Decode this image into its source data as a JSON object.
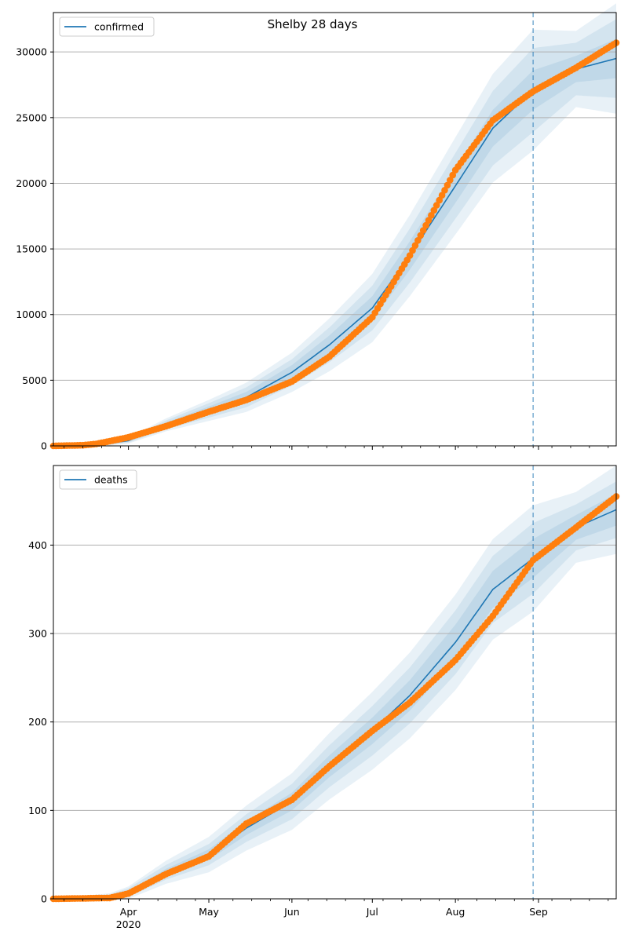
{
  "title": "Shelby 28 days",
  "x_axis": {
    "months": [
      {
        "date": "2020-04-01",
        "label": "Apr"
      },
      {
        "date": "2020-05-01",
        "label": "May"
      },
      {
        "date": "2020-06-01",
        "label": "Jun"
      },
      {
        "date": "2020-07-01",
        "label": "Jul"
      },
      {
        "date": "2020-08-01",
        "label": "Aug"
      },
      {
        "date": "2020-09-01",
        "label": "Sep"
      }
    ],
    "year_label": "2020",
    "range": [
      "2020-03-04",
      "2020-09-30"
    ]
  },
  "forecast_split_date": "2020-08-30",
  "colors": {
    "model_line": "#1f77b4",
    "observed_points": "#ff7f0e",
    "band_fill": "#1f77b4",
    "forecast_line": "#1f77b4",
    "grid": "#b0b0b0"
  },
  "chart_data": [
    {
      "type": "line",
      "legend": "confirmed",
      "legend_position": "top-left",
      "ylim": [
        0,
        33000
      ],
      "yticks": [
        0,
        5000,
        10000,
        15000,
        20000,
        25000,
        30000
      ],
      "grid": "horizontal",
      "model_series": {
        "x": [
          "2020-03-04",
          "2020-03-20",
          "2020-04-01",
          "2020-04-15",
          "2020-05-01",
          "2020-05-15",
          "2020-06-01",
          "2020-06-15",
          "2020-07-01",
          "2020-07-15",
          "2020-08-01",
          "2020-08-15",
          "2020-08-30",
          "2020-09-15",
          "2020-09-30"
        ],
        "y": [
          0,
          60,
          400,
          1600,
          2700,
          3700,
          5600,
          7700,
          10500,
          14500,
          19800,
          24200,
          27100,
          28700,
          29500
        ]
      },
      "band_halfwidths": [
        {
          "x": [
            "2020-03-04",
            "2020-04-01",
            "2020-05-01",
            "2020-06-01",
            "2020-07-01",
            "2020-08-01",
            "2020-08-30",
            "2020-09-15",
            "2020-09-30"
          ],
          "h": [
            0,
            80,
            300,
            550,
            900,
            1300,
            1500,
            1000,
            1500
          ]
        },
        {
          "x": [
            "2020-03-04",
            "2020-04-01",
            "2020-05-01",
            "2020-06-01",
            "2020-07-01",
            "2020-08-01",
            "2020-08-30",
            "2020-09-15",
            "2020-09-30"
          ],
          "h": [
            0,
            150,
            550,
            1000,
            1700,
            2500,
            3200,
            2000,
            3000
          ]
        },
        {
          "x": [
            "2020-03-04",
            "2020-04-01",
            "2020-05-01",
            "2020-06-01",
            "2020-07-01",
            "2020-08-01",
            "2020-08-30",
            "2020-09-15",
            "2020-09-30"
          ],
          "h": [
            0,
            220,
            800,
            1500,
            2600,
            3700,
            4600,
            2900,
            4200
          ]
        }
      ],
      "observed_series": {
        "x": [
          "2020-03-04",
          "2020-03-15",
          "2020-03-20",
          "2020-04-01",
          "2020-04-15",
          "2020-05-01",
          "2020-05-15",
          "2020-06-01",
          "2020-06-15",
          "2020-07-01",
          "2020-07-15",
          "2020-08-01",
          "2020-08-15",
          "2020-08-30",
          "2020-09-15",
          "2020-09-30"
        ],
        "y": [
          0,
          50,
          150,
          650,
          1500,
          2600,
          3500,
          4900,
          6800,
          9800,
          14500,
          21000,
          24800,
          27000,
          28800,
          30700
        ]
      }
    },
    {
      "type": "line",
      "legend": "deaths",
      "legend_position": "top-left",
      "ylim": [
        0,
        490
      ],
      "yticks": [
        0,
        100,
        200,
        300,
        400
      ],
      "grid": "horizontal",
      "model_series": {
        "x": [
          "2020-03-04",
          "2020-03-25",
          "2020-04-01",
          "2020-04-15",
          "2020-05-01",
          "2020-05-15",
          "2020-06-01",
          "2020-06-15",
          "2020-07-01",
          "2020-07-15",
          "2020-08-01",
          "2020-08-15",
          "2020-08-30",
          "2020-09-15",
          "2020-09-30"
        ],
        "y": [
          0,
          1,
          7,
          30,
          50,
          80,
          110,
          150,
          190,
          230,
          290,
          350,
          385,
          420,
          440
        ]
      },
      "band_halfwidths": [
        {
          "x": [
            "2020-03-04",
            "2020-04-01",
            "2020-05-01",
            "2020-06-01",
            "2020-07-01",
            "2020-08-01",
            "2020-08-30",
            "2020-09-15",
            "2020-09-30"
          ],
          "h": [
            0,
            2,
            6,
            10,
            15,
            20,
            22,
            14,
            18
          ]
        },
        {
          "x": [
            "2020-03-04",
            "2020-04-01",
            "2020-05-01",
            "2020-06-01",
            "2020-07-01",
            "2020-08-01",
            "2020-08-30",
            "2020-09-15",
            "2020-09-30"
          ],
          "h": [
            0,
            5,
            12,
            20,
            28,
            36,
            40,
            26,
            32
          ]
        },
        {
          "x": [
            "2020-03-04",
            "2020-04-01",
            "2020-05-01",
            "2020-06-01",
            "2020-07-01",
            "2020-08-01",
            "2020-08-30",
            "2020-09-15",
            "2020-09-30"
          ],
          "h": [
            0,
            7,
            20,
            32,
            44,
            54,
            60,
            40,
            50
          ]
        }
      ],
      "observed_series": {
        "x": [
          "2020-03-04",
          "2020-03-25",
          "2020-04-01",
          "2020-04-15",
          "2020-05-01",
          "2020-05-15",
          "2020-06-01",
          "2020-06-15",
          "2020-07-01",
          "2020-07-15",
          "2020-08-01",
          "2020-08-15",
          "2020-08-30",
          "2020-09-15",
          "2020-09-30"
        ],
        "y": [
          0,
          1,
          6,
          28,
          48,
          85,
          112,
          150,
          190,
          222,
          270,
          320,
          383,
          420,
          455
        ]
      }
    }
  ]
}
